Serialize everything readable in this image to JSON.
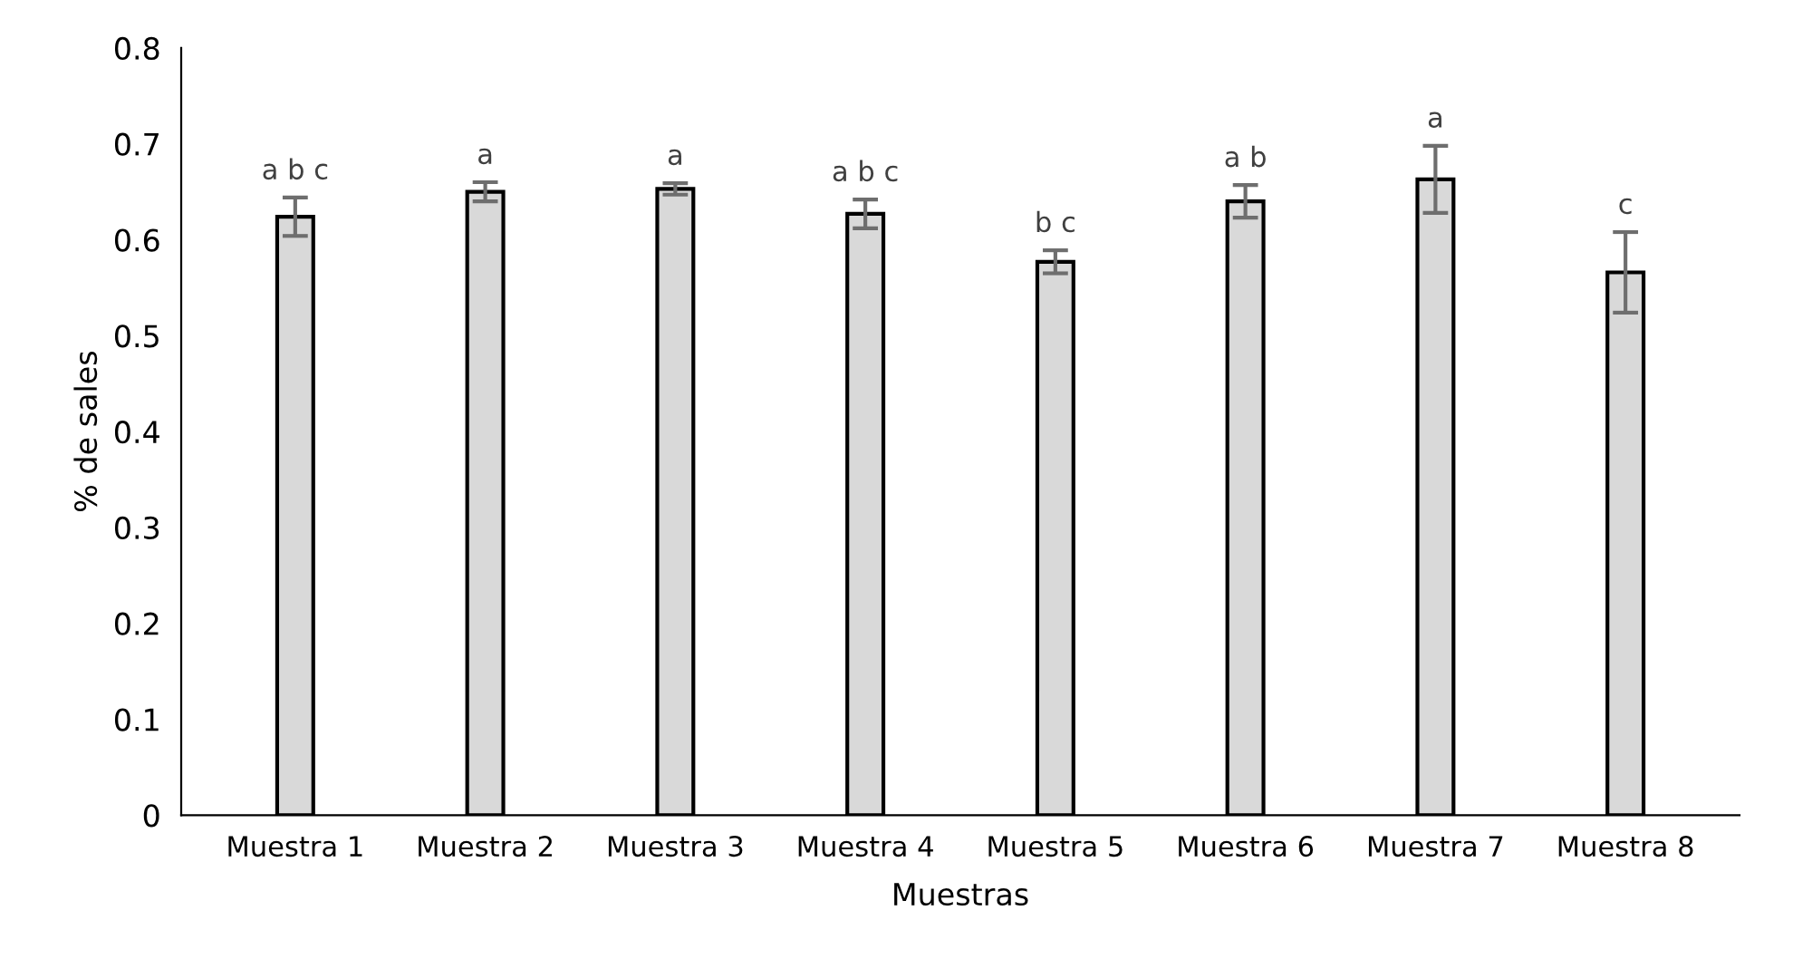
{
  "chart_data": {
    "type": "bar",
    "xlabel": "Muestras",
    "ylabel": "% de sales",
    "categories": [
      "Muestra 1",
      "Muestra 2",
      "Muestra 3",
      "Muestra 4",
      "Muestra 5",
      "Muestra 6",
      "Muestra 7",
      "Muestra 8"
    ],
    "values": [
      0.624,
      0.65,
      0.653,
      0.627,
      0.577,
      0.64,
      0.663,
      0.566
    ],
    "errors": [
      0.02,
      0.01,
      0.006,
      0.015,
      0.012,
      0.017,
      0.035,
      0.042
    ],
    "color": "#d9d9d9",
    "ylim": [
      0,
      0.8
    ],
    "yticks": [
      0,
      0.1,
      0.2,
      0.3,
      0.4,
      0.5,
      0.6,
      0.7,
      0.8
    ],
    "grid": false,
    "annotations": [
      {
        "text": "a b c",
        "x": "Muestra 1",
        "y": 0.644
      },
      {
        "text": "a",
        "x": "Muestra 2",
        "y": 0.66
      },
      {
        "text": "a",
        "x": "Muestra 3",
        "y": 0.659
      },
      {
        "text": "a b c",
        "x": "Muestra 4",
        "y": 0.642
      },
      {
        "text": "b c",
        "x": "Muestra 5",
        "y": 0.589
      },
      {
        "text": "a b",
        "x": "Muestra 6",
        "y": 0.657
      },
      {
        "text": "a",
        "x": "Muestra 7",
        "y": 0.698
      },
      {
        "text": "c",
        "x": "Muestra 8",
        "y": 0.608
      }
    ]
  }
}
